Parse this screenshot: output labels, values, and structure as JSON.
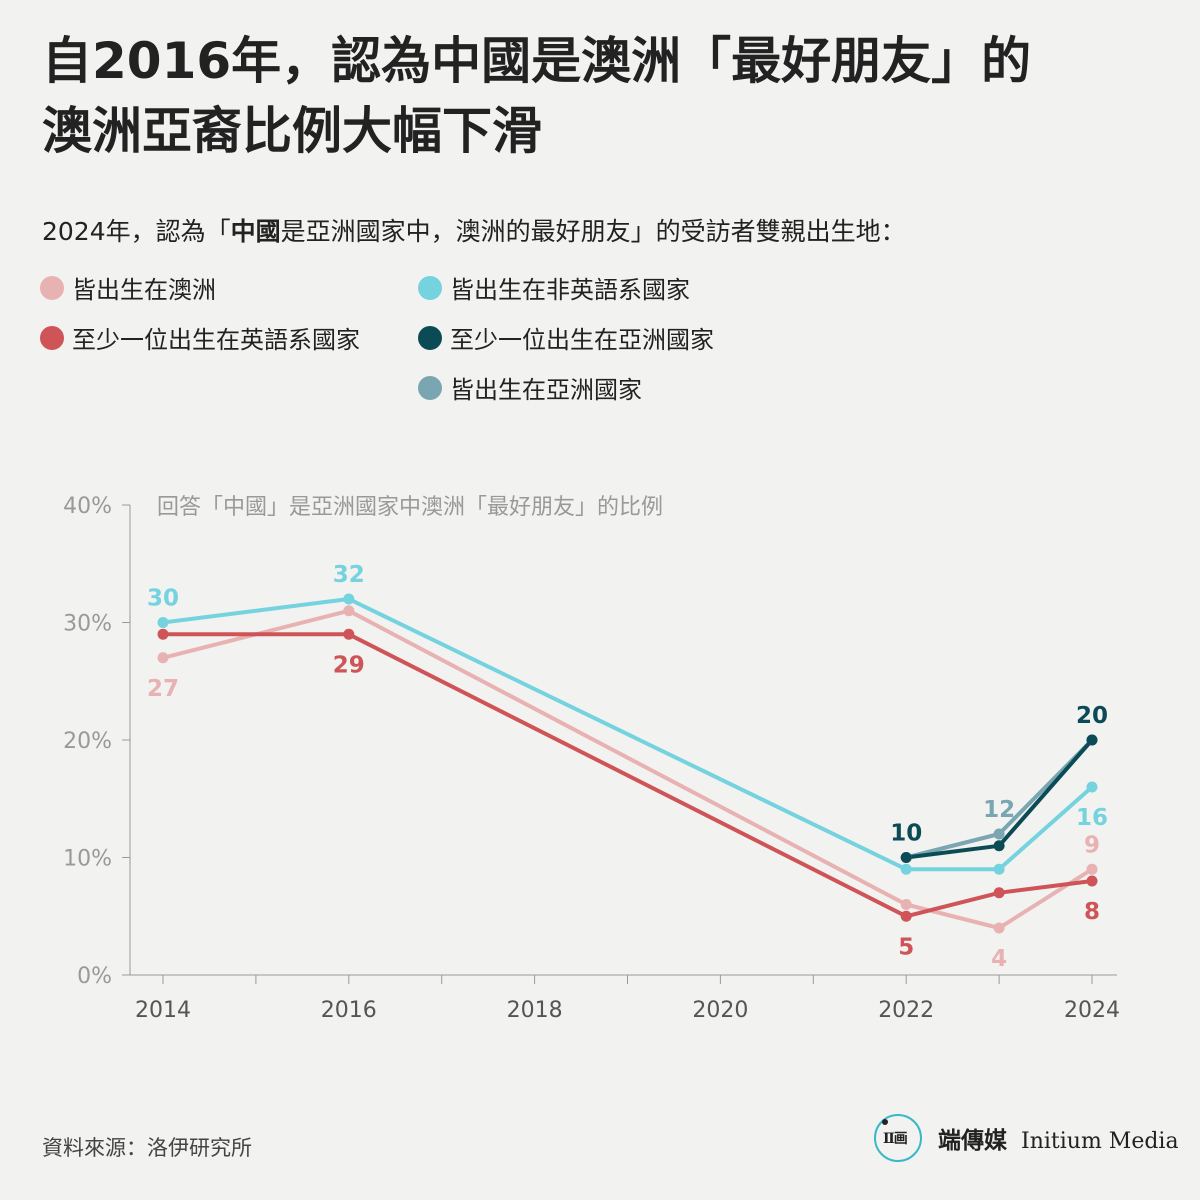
{
  "title_lines": [
    "自2016年，認為中國是澳洲「最好朋友」的",
    "澳洲亞裔比例大幅下滑"
  ],
  "subtitle": {
    "before": "2024年，認為「",
    "bold": "中國",
    "after": "是亞洲國家中，澳洲的最好朋友」的受訪者雙親出生地："
  },
  "legend": [
    {
      "label": "皆出生在澳洲",
      "color": "#e8b2b3"
    },
    {
      "label": "皆出生在非英語系國家",
      "color": "#74d3df"
    },
    {
      "label": "至少一位出生在英語系國家",
      "color": "#cf5457"
    },
    {
      "label": "至少一位出生在亞洲國家",
      "color": "#0b4b56"
    },
    {
      "label": "皆出生在亞洲國家",
      "color": "#7aa6b1"
    }
  ],
  "chart_data": {
    "type": "line",
    "title": "回答「中國」是亞洲國家中澳洲「最好朋友」的比例",
    "xlim": [
      2014,
      2024
    ],
    "xticks": [
      2014,
      2016,
      2018,
      2020,
      2022,
      2024
    ],
    "ylim": [
      0,
      40
    ],
    "yticks": [
      0,
      10,
      20,
      30,
      40
    ],
    "ytick_labels": [
      "0%",
      "10%",
      "20%",
      "30%",
      "40%"
    ],
    "series": [
      {
        "name": "皆出生在澳洲",
        "color": "#e8b2b3",
        "points": [
          [
            2014,
            27
          ],
          [
            2016,
            31
          ],
          [
            2022,
            6
          ],
          [
            2023,
            4
          ],
          [
            2024,
            9
          ]
        ],
        "labels": [
          {
            "x": 2014,
            "text": "27",
            "pos": "below"
          },
          {
            "x": 2023,
            "text": "4",
            "pos": "below"
          },
          {
            "x": 2024,
            "text": "9",
            "pos": "above"
          }
        ]
      },
      {
        "name": "皆出生在非英語系國家",
        "color": "#74d3df",
        "points": [
          [
            2014,
            30
          ],
          [
            2016,
            32
          ],
          [
            2022,
            9
          ],
          [
            2023,
            9
          ],
          [
            2024,
            16
          ]
        ],
        "labels": [
          {
            "x": 2014,
            "text": "30",
            "pos": "above"
          },
          {
            "x": 2016,
            "text": "32",
            "pos": "above"
          },
          {
            "x": 2024,
            "text": "16",
            "pos": "below"
          }
        ]
      },
      {
        "name": "至少一位出生在英語系國家",
        "color": "#cf5457",
        "points": [
          [
            2014,
            29
          ],
          [
            2016,
            29
          ],
          [
            2022,
            5
          ],
          [
            2023,
            7
          ],
          [
            2024,
            8
          ]
        ],
        "labels": [
          {
            "x": 2016,
            "text": "29",
            "pos": "below"
          },
          {
            "x": 2022,
            "text": "5",
            "pos": "below"
          },
          {
            "x": 2024,
            "text": "8",
            "pos": "below"
          }
        ]
      },
      {
        "name": "皆出生在亞洲國家",
        "color": "#7aa6b1",
        "points": [
          [
            2022,
            10
          ],
          [
            2023,
            12
          ],
          [
            2024,
            20
          ]
        ],
        "labels": [
          {
            "x": 2023,
            "text": "12",
            "pos": "above"
          }
        ]
      },
      {
        "name": "至少一位出生在亞洲國家",
        "color": "#0b4b56",
        "points": [
          [
            2022,
            10
          ],
          [
            2023,
            11
          ],
          [
            2024,
            20
          ]
        ],
        "labels": [
          {
            "x": 2022,
            "text": "10",
            "pos": "above"
          },
          {
            "x": 2024,
            "text": "20",
            "pos": "above"
          }
        ]
      }
    ]
  },
  "source": "資料來源：洛伊研究所",
  "brand": {
    "logo_text": "Ⅱ画",
    "zh": "端傳媒",
    "en": "Initium Media"
  }
}
